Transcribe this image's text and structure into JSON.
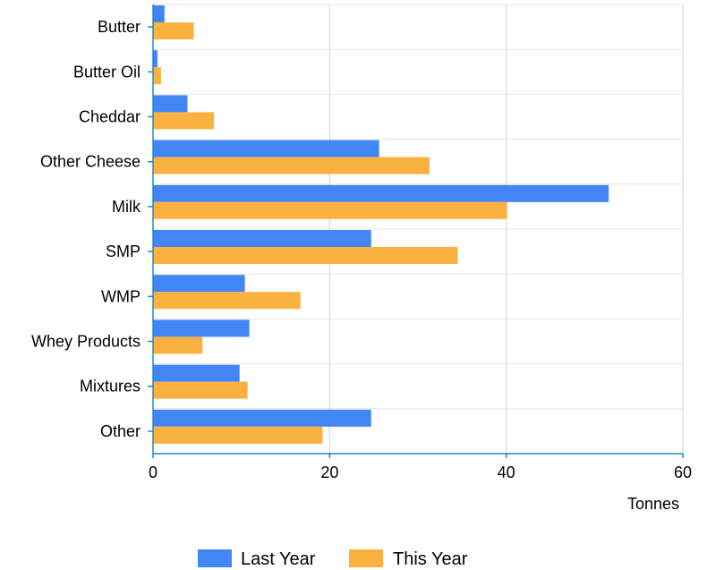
{
  "chart_data": {
    "type": "bar",
    "orientation": "horizontal",
    "categories": [
      "Butter",
      "Butter Oil",
      "Cheddar",
      "Other Cheese",
      "Milk",
      "SMP",
      "WMP",
      "Whey Products",
      "Mixtures",
      "Other"
    ],
    "series": [
      {
        "name": "Last Year",
        "color": "#4285f4",
        "values": [
          1.3,
          0.5,
          3.9,
          25.6,
          51.6,
          24.7,
          10.4,
          10.9,
          9.8,
          24.7
        ]
      },
      {
        "name": "This Year",
        "color": "#fbb140",
        "values": [
          4.6,
          0.9,
          6.9,
          31.3,
          40.1,
          34.5,
          16.7,
          5.6,
          10.7,
          19.2
        ]
      }
    ],
    "xlabel": "Tonnes",
    "ylabel": "",
    "xlim": [
      0,
      60
    ],
    "xticks": [
      0,
      20,
      40,
      60
    ],
    "grid": true,
    "legend_position": "bottom"
  }
}
